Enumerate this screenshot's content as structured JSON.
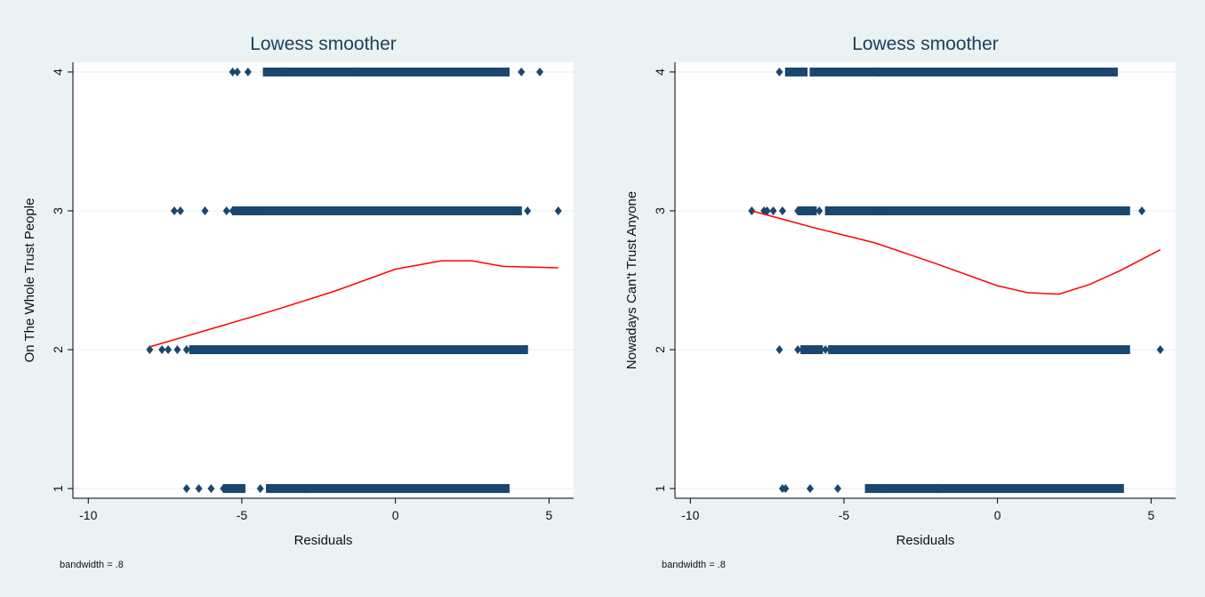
{
  "chart_data": [
    {
      "type": "scatter",
      "title": "Lowess smoother",
      "xlabel": "Residuals",
      "ylabel": "On The Whole Trust People",
      "note": "bandwidth = .8",
      "xlim": [
        -10.5,
        5.8
      ],
      "ylim": [
        0.93,
        4.07
      ],
      "xticks": [
        -10,
        -5,
        0,
        5
      ],
      "yticks": [
        1,
        2,
        3,
        4
      ],
      "colors": {
        "points": "#1a476f",
        "line": "#ff0000",
        "grid": "#eaf2f3"
      },
      "points": [
        {
          "y": 4,
          "x": [
            -5.3,
            -5.15,
            -4.8
          ],
          "ranges": [
            [
              -4.2,
              -3.7
            ],
            [
              -3.6,
              -1.3
            ],
            [
              -1.2,
              3.6
            ]
          ],
          "singles": [
            4.1,
            4.7
          ]
        },
        {
          "y": 3,
          "x": [
            -7.2,
            -7.0,
            -6.2,
            -5.5,
            -5.3
          ],
          "ranges": [
            [
              -5.2,
              -4.8
            ],
            [
              -4.7,
              -4.6
            ],
            [
              -4.4,
              4.0
            ]
          ],
          "singles": [
            4.3,
            5.3
          ]
        },
        {
          "y": 2,
          "x": [
            -8.0,
            -7.6,
            -7.4,
            -7.1,
            -6.8
          ],
          "ranges": [
            [
              -6.6,
              -5.3
            ],
            [
              -5.2,
              4.2
            ]
          ],
          "singles": []
        },
        {
          "y": 1,
          "x": [
            -6.8,
            -6.4,
            -6.0,
            -5.6,
            -5.3,
            -4.4
          ],
          "ranges": [
            [
              -5.5,
              -5.0
            ],
            [
              -4.1,
              -3.0
            ],
            [
              -2.9,
              3.6
            ]
          ],
          "singles": []
        }
      ],
      "lowess": {
        "x": [
          -8.0,
          -6.0,
          -4.0,
          -2.0,
          0.0,
          1.5,
          2.5,
          3.5,
          5.3
        ],
        "y": [
          2.02,
          2.15,
          2.28,
          2.42,
          2.58,
          2.64,
          2.64,
          2.6,
          2.59
        ]
      }
    },
    {
      "type": "scatter",
      "title": "Lowess smoother",
      "xlabel": "Residuals",
      "ylabel": "Nowadays Can't Trust Anyone",
      "note": "bandwidth = .8",
      "xlim": [
        -10.5,
        5.8
      ],
      "ylim": [
        0.93,
        4.07
      ],
      "xticks": [
        -10,
        -5,
        0,
        5
      ],
      "yticks": [
        1,
        2,
        3,
        4
      ],
      "colors": {
        "points": "#1a476f",
        "line": "#ff0000",
        "grid": "#eaf2f3"
      },
      "points": [
        {
          "y": 4,
          "x": [
            -7.1,
            -6.8
          ],
          "ranges": [
            [
              -6.8,
              -6.3
            ],
            [
              -6.0,
              -3.9
            ],
            [
              -3.8,
              3.8
            ]
          ],
          "singles": []
        },
        {
          "y": 3,
          "x": [
            -8.0,
            -7.6,
            -7.5,
            -7.3,
            -7.0,
            -6.5,
            -5.8
          ],
          "ranges": [
            [
              -6.4,
              -6.0
            ],
            [
              -5.5,
              -3.9
            ],
            [
              -3.8,
              4.2
            ]
          ],
          "singles": [
            4.7
          ]
        },
        {
          "y": 2,
          "x": [
            -7.1,
            -6.5,
            -6.1,
            -5.6,
            -5.0
          ],
          "ranges": [
            [
              -6.3,
              -5.8
            ],
            [
              -5.4,
              -5.0
            ],
            [
              -4.9,
              4.2
            ]
          ],
          "singles": [
            5.3
          ]
        },
        {
          "y": 1,
          "x": [
            -7.0,
            -6.9,
            -6.1,
            -5.2
          ],
          "ranges": [
            [
              -4.2,
              -3.7
            ],
            [
              -3.6,
              -2.0
            ],
            [
              -1.9,
              4.0
            ]
          ],
          "singles": []
        }
      ],
      "lowess": {
        "x": [
          -8.0,
          -6.0,
          -4.0,
          -2.0,
          0.0,
          1.0,
          2.0,
          3.0,
          4.0,
          5.3
        ],
        "y": [
          3.0,
          2.88,
          2.77,
          2.62,
          2.46,
          2.41,
          2.4,
          2.47,
          2.57,
          2.72
        ]
      }
    }
  ]
}
